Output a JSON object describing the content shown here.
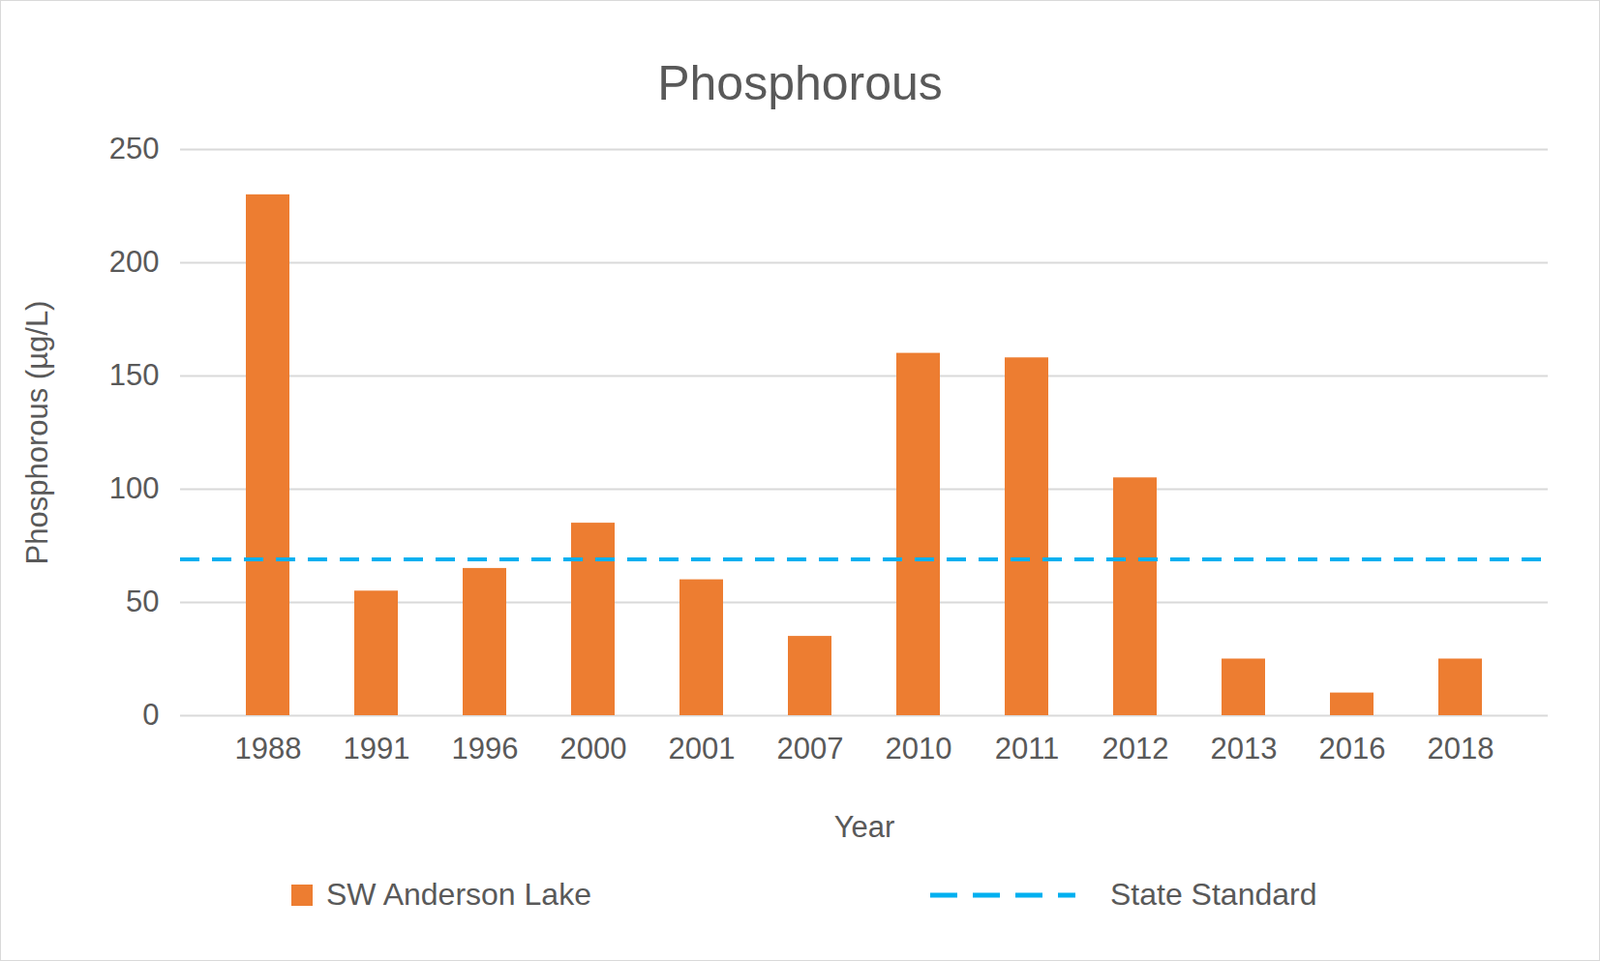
{
  "chart_data": {
    "type": "bar",
    "title": "Phosphorous",
    "x_label": "Year",
    "y_label": "Phosphorous (µg/L)",
    "categories": [
      "1988",
      "1991",
      "1996",
      "2000",
      "2001",
      "2007",
      "2010",
      "2011",
      "2012",
      "2013",
      "2016",
      "2018"
    ],
    "series": [
      {
        "name": "SW Anderson Lake",
        "type": "bar",
        "color": "#ed7d31",
        "values": [
          230,
          55,
          65,
          85,
          60,
          35,
          160,
          158,
          105,
          25,
          10,
          25
        ]
      },
      {
        "name": "State Standard",
        "type": "line",
        "color": "#00b0f0",
        "line_style": "dashed",
        "values": [
          69,
          69,
          69,
          69,
          69,
          69,
          69,
          69,
          69,
          69,
          69,
          69
        ]
      }
    ],
    "ylim": [
      0,
      250
    ],
    "yticks": [
      0,
      50,
      100,
      150,
      200,
      250
    ],
    "grid": true,
    "legend": "bottom"
  }
}
